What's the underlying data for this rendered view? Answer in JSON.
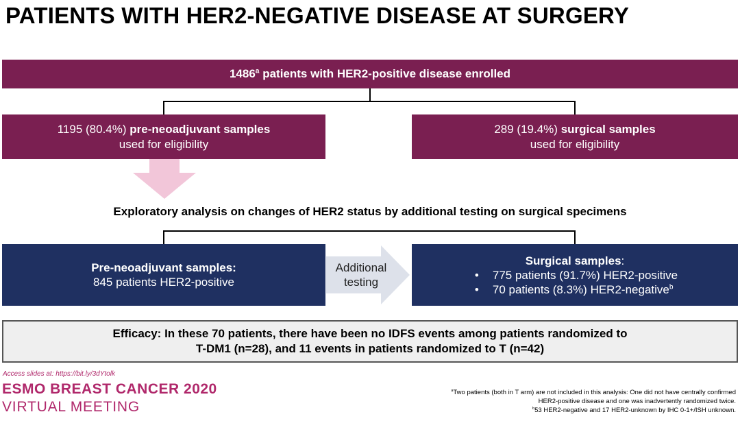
{
  "title": "PATIENTS WITH HER2-NEGATIVE DISEASE AT SURGERY",
  "enrolled": {
    "count": "1486",
    "sup": "a",
    "text": "patients with HER2-positive disease enrolled"
  },
  "pre_neoadjuvant": {
    "count": "1195 (80.4%)",
    "bold": "pre-neoadjuvant samples",
    "line2": "used for eligibility"
  },
  "surgical": {
    "count": "289 (19.4%)",
    "bold": "surgical samples",
    "line2": "used for eligibility"
  },
  "exploratory": "Exploratory analysis on changes of HER2 status by additional testing on surgical specimens",
  "pre_box": {
    "heading": "Pre-neoadjuvant samples:",
    "line": "845 patients HER2-positive"
  },
  "additional_testing": {
    "line1": "Additional",
    "line2": "testing"
  },
  "surg_box": {
    "heading": "Surgical samples",
    "colon": ":",
    "bullet1": "775 patients (91.7%) HER2-positive",
    "bullet2": "70 patients (8.3%) HER2-negative",
    "bullet2_sup": "b"
  },
  "efficacy": {
    "line1": "Efficacy: In these 70 patients, there have been no IDFS events among patients randomized to",
    "line2": "T-DM1 (n=28), and 11 events in patients randomized to T (n=42)"
  },
  "access": "Access slides at: https://bit.ly/3dYtolk",
  "esmo": {
    "line1": "ESMO BREAST CANCER 2020",
    "line2": "VIRTUAL MEETING"
  },
  "footnotes": {
    "a_sup": "a",
    "a_line1": "Two patients (both in T arm) are not included in this analysis: One did not have centrally confirmed",
    "a_line2": "HER2-positive disease and one was inadvertently randomized twice.",
    "b_sup": "b",
    "b_line": "53 HER2-negative and 17 HER2-unknown by IHC 0-1+/ISH unknown."
  },
  "colors": {
    "maroon": "#7a1f51",
    "navy": "#1f3061",
    "pink_arrow": "#f2c6d9",
    "grey_arrow": "#dde1ea",
    "brand": "#b0286b"
  }
}
